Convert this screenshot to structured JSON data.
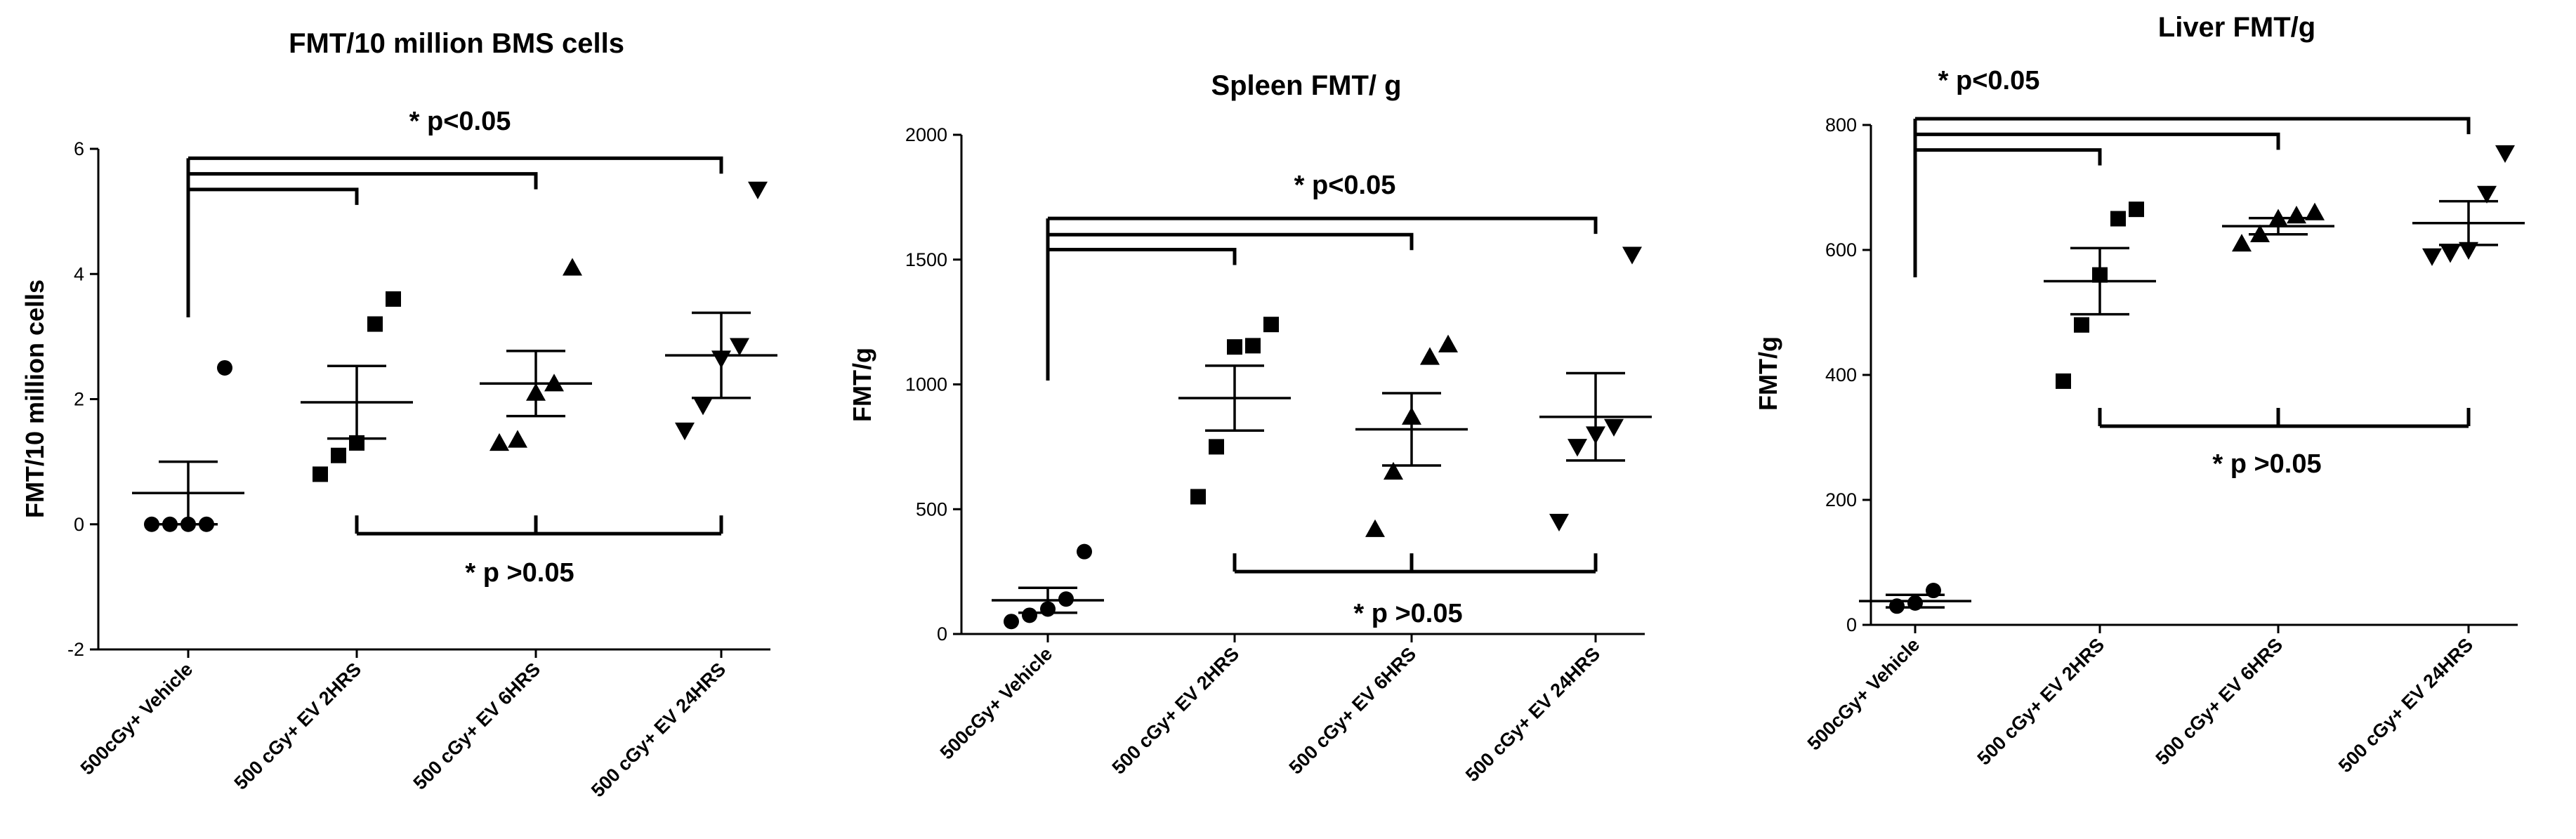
{
  "chart_data": [
    {
      "type": "scatter",
      "title": "FMT/10 million BMS cells",
      "xlabel": "",
      "ylabel": "FMT/10 million cells",
      "ylim": [
        -2,
        6
      ],
      "yticks": [
        -2,
        0,
        2,
        4,
        6
      ],
      "categories": [
        "500cGy+ Vehicle",
        "500 cGy+ EV 2HRS",
        "500 cGy+ EV 6HRS",
        "500 cGy+ EV 24HRS"
      ],
      "markers": [
        "circle",
        "square",
        "triangle-up",
        "triangle-down"
      ],
      "points": [
        [
          0,
          0,
          0,
          0,
          2.5
        ],
        [
          0.8,
          1.1,
          1.3,
          3.2,
          3.6
        ],
        [
          1.3,
          1.35,
          2.1,
          2.25,
          4.1
        ],
        [
          1.5,
          1.9,
          2.65,
          2.85,
          5.35
        ]
      ],
      "mean": [
        0.5,
        1.95,
        2.25,
        2.7
      ],
      "sem": [
        0.5,
        0.58,
        0.52,
        0.68
      ],
      "significance": {
        "top_label": "* p<0.05",
        "bottom_label": "* p >0.05",
        "top_brackets": [
          {
            "from": 0,
            "to": 1,
            "level": 5.35
          },
          {
            "from": 0,
            "to": 2,
            "level": 5.6
          },
          {
            "from": 0,
            "to": 3,
            "level": 5.85
          }
        ],
        "bottom_bracket": {
          "from": 1,
          "to": 3,
          "level": -0.15,
          "ticks": [
            1,
            2,
            3
          ]
        }
      }
    },
    {
      "type": "scatter",
      "title": "Spleen  FMT/ g",
      "xlabel": "",
      "ylabel": "FMT/g",
      "ylim": [
        0,
        2000
      ],
      "yticks": [
        0,
        500,
        1000,
        1500,
        2000
      ],
      "categories": [
        "500cGy+ Vehicle",
        "500 cGy+ EV 2HRS",
        "500 cGy+ EV 6HRS",
        "500 cGy+ EV 24HRS"
      ],
      "markers": [
        "circle",
        "square",
        "triangle-up",
        "triangle-down"
      ],
      "points": [
        [
          50,
          75,
          100,
          140,
          330
        ],
        [
          550,
          750,
          1150,
          1155,
          1240
        ],
        [
          420,
          650,
          870,
          1110,
          1160
        ],
        [
          450,
          750,
          800,
          830,
          1520
        ]
      ],
      "mean": [
        135,
        945,
        820,
        870
      ],
      "sem": [
        50,
        130,
        145,
        175
      ],
      "significance": {
        "top_label": "* p<0.05",
        "bottom_label": "* p >0.05",
        "top_brackets": [
          {
            "from": 0,
            "to": 1,
            "level": 1540
          },
          {
            "from": 0,
            "to": 2,
            "level": 1600
          },
          {
            "from": 0,
            "to": 3,
            "level": 1665
          }
        ],
        "bottom_bracket": {
          "from": 1,
          "to": 3,
          "level": 250,
          "ticks": [
            1,
            2,
            3
          ]
        }
      }
    },
    {
      "type": "scatter",
      "title": "Liver FMT/g",
      "xlabel": "",
      "ylabel": "FMT/g",
      "ylim": [
        0,
        800
      ],
      "yticks": [
        0,
        200,
        400,
        600,
        800
      ],
      "categories": [
        "500cGy+ Vehicle",
        "500 cGy+ EV 2HRS",
        "500 cGy+ EV 6HRS",
        "500 cGy+ EV 24HRS"
      ],
      "markers": [
        "circle",
        "square",
        "triangle-up",
        "triangle-down"
      ],
      "points": [
        [
          30,
          35,
          55
        ],
        [
          390,
          480,
          560,
          650,
          665
        ],
        [
          610,
          625,
          650,
          655,
          660
        ],
        [
          590,
          595,
          600,
          690,
          755
        ]
      ],
      "mean": [
        38,
        550,
        638,
        643
      ],
      "sem": [
        10,
        53,
        13,
        35
      ],
      "significance": {
        "top_label": "* p<0.05",
        "bottom_label": "* p >0.05",
        "top_brackets": [
          {
            "from": 0,
            "to": 1,
            "level": 760
          },
          {
            "from": 0,
            "to": 2,
            "level": 785
          },
          {
            "from": 0,
            "to": 3,
            "level": 810
          }
        ],
        "bottom_bracket": {
          "from": 1,
          "to": 3,
          "level": 318,
          "ticks": [
            1,
            2,
            3
          ]
        }
      }
    }
  ]
}
